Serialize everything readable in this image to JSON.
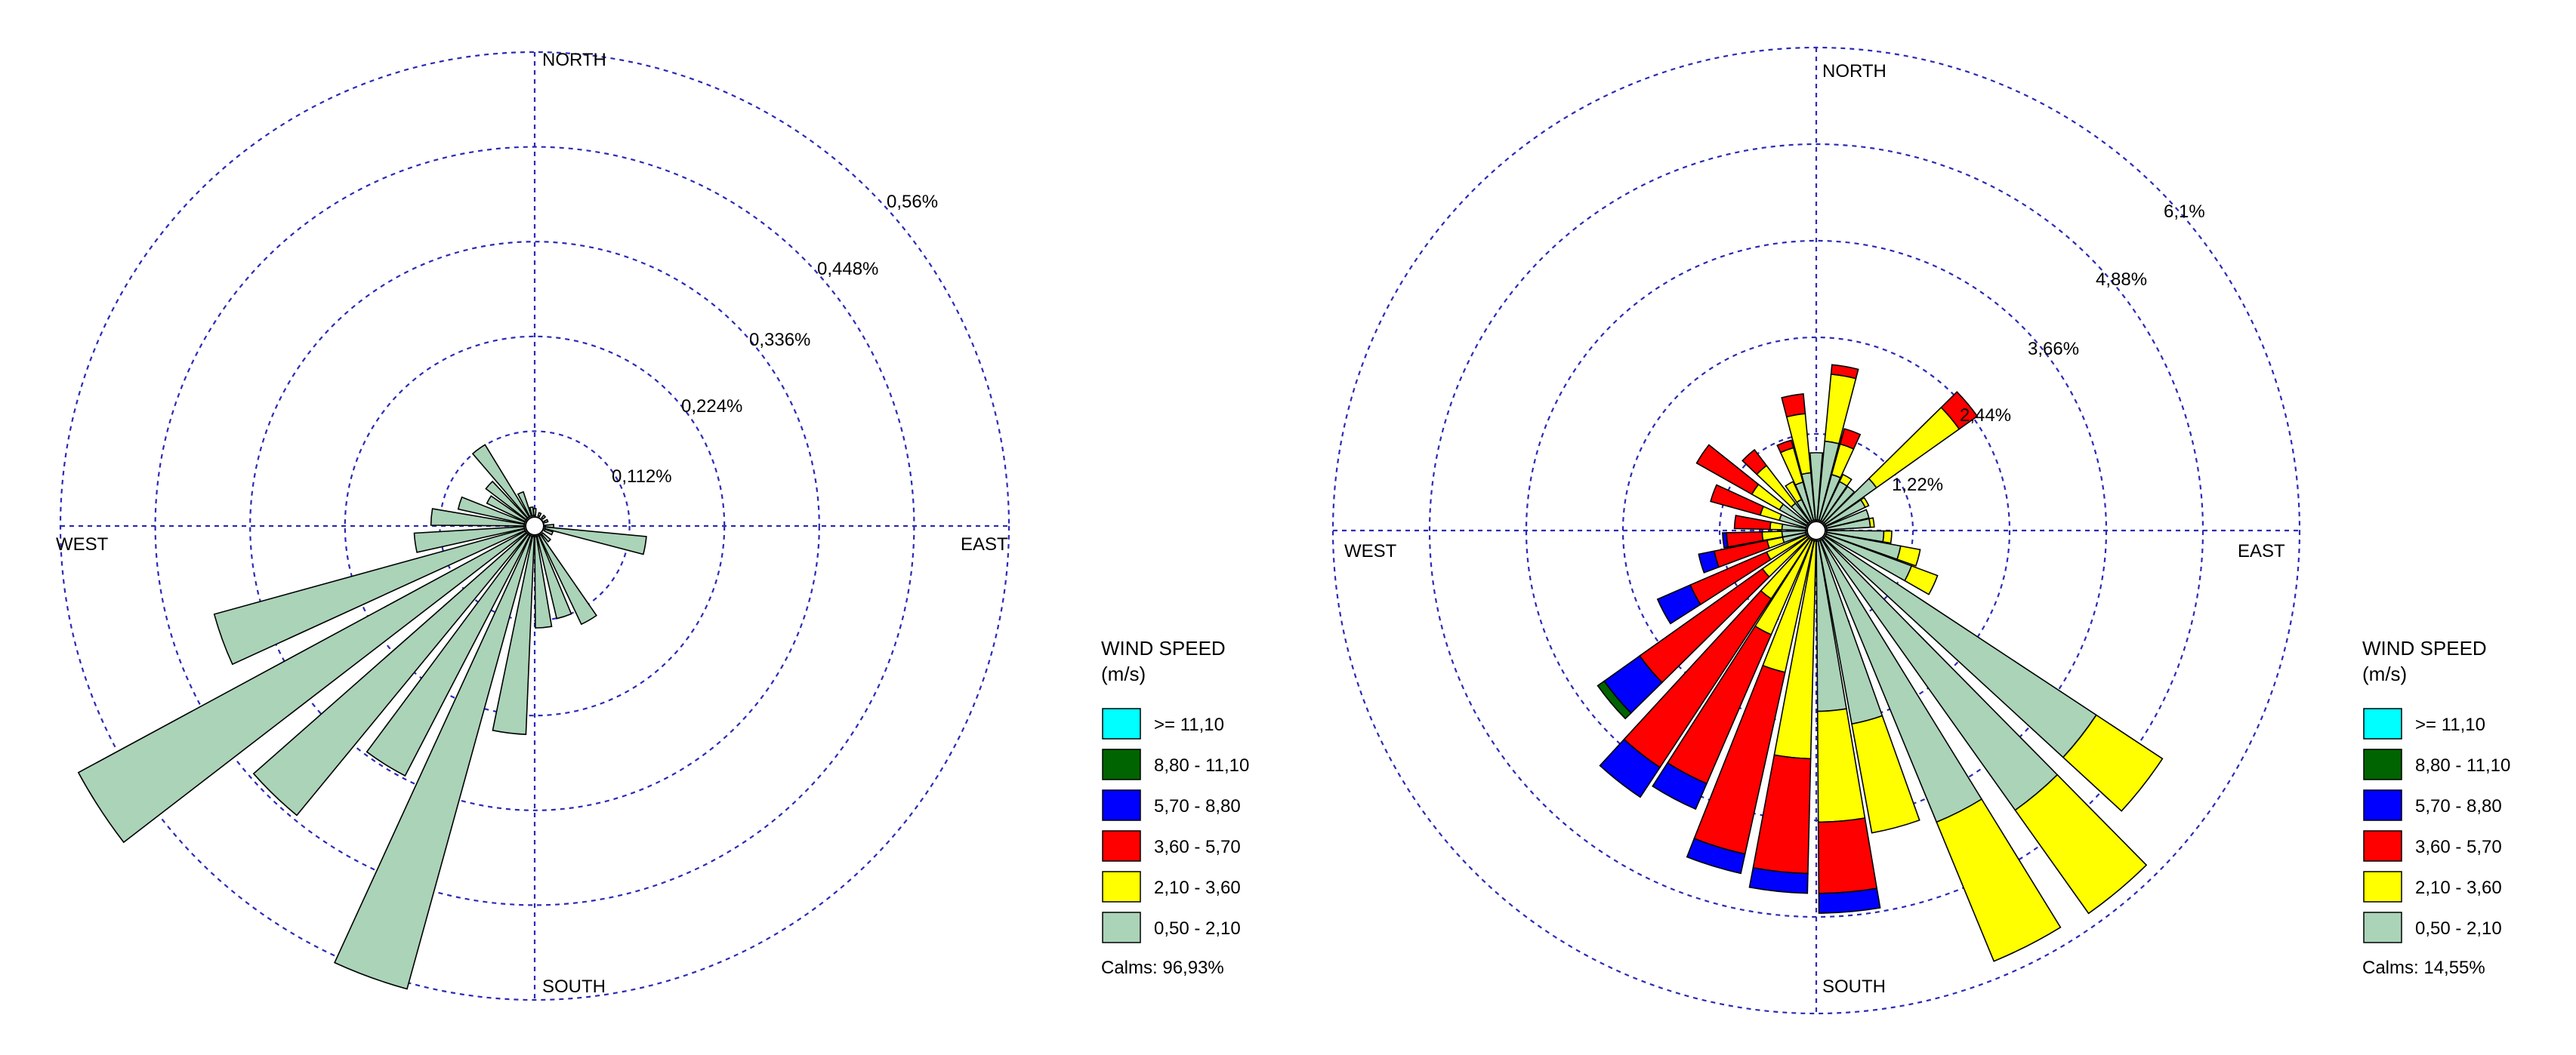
{
  "chart_data": [
    {
      "type": "windrose",
      "rings": [
        "0,112%",
        "0,224%",
        "0,336%",
        "0,448%",
        "0,56%"
      ],
      "ring_values": [
        0.112,
        0.224,
        0.336,
        0.448,
        0.56
      ],
      "directions": {
        "north": "NORTH",
        "south": "SOUTH",
        "east": "EAST",
        "west": "WEST"
      },
      "legend_title": [
        "WIND SPEED",
        "(m/s)"
      ],
      "calms": "Calms: 96,93%",
      "bins": [
        "0,50 - 2,10"
      ],
      "sectors": [
        {
          "dir": 0,
          "values": [
            0.008
          ]
        },
        {
          "dir": 22.5,
          "values": [
            0.004
          ]
        },
        {
          "dir": 45,
          "values": [
            0.004
          ]
        },
        {
          "dir": 67.5,
          "values": [
            0.004
          ]
        },
        {
          "dir": 90,
          "values": [
            0.01
          ]
        },
        {
          "dir": 100,
          "values": [
            0.12
          ]
        },
        {
          "dir": 112.5,
          "values": [
            0.01
          ]
        },
        {
          "dir": 135,
          "values": [
            0.012
          ]
        },
        {
          "dir": 150,
          "values": [
            0.116
          ]
        },
        {
          "dir": 162,
          "values": [
            0.1
          ]
        },
        {
          "dir": 175,
          "values": [
            0.108
          ]
        },
        {
          "dir": 187,
          "values": [
            0.234
          ]
        },
        {
          "dir": 200,
          "values": [
            0.555
          ]
        },
        {
          "dir": 212,
          "values": [
            0.32
          ]
        },
        {
          "dir": 224,
          "values": [
            0.43
          ]
        },
        {
          "dir": 237,
          "values": [
            0.6
          ]
        },
        {
          "dir": 250,
          "values": [
            0.38
          ]
        },
        {
          "dir": 262,
          "values": [
            0.13
          ]
        },
        {
          "dir": 275,
          "values": [
            0.11
          ]
        },
        {
          "dir": 287,
          "values": [
            0.08
          ]
        },
        {
          "dir": 300,
          "values": [
            0.05
          ]
        },
        {
          "dir": 312,
          "values": [
            0.06
          ]
        },
        {
          "dir": 324,
          "values": [
            0.1
          ]
        },
        {
          "dir": 337,
          "values": [
            0.03
          ]
        },
        {
          "dir": 350,
          "values": [
            0.01
          ]
        }
      ]
    },
    {
      "type": "windrose",
      "rings": [
        "1,22%",
        "2,44%",
        "3,66%",
        "4,88%",
        "6,1%"
      ],
      "ring_values": [
        1.22,
        2.44,
        3.66,
        4.88,
        6.1
      ],
      "directions": {
        "north": "NORTH",
        "south": "SOUTH",
        "east": "EAST",
        "west": "WEST"
      },
      "legend_title": [
        "WIND SPEED",
        "(m/s)"
      ],
      "calms": "Calms: 14,55%",
      "bins": [
        ">= 11,10",
        "8,80 - 11,10",
        "5,70 - 8,80",
        "3,60 - 5,70",
        "2,10 - 3,60",
        "0,50 - 2,10"
      ],
      "sectors": [
        {
          "dir": 0,
          "values": [
            0.85,
            0.0,
            0.0,
            0.0,
            0.0,
            0.0
          ]
        },
        {
          "dir": 10,
          "values": [
            1.0,
            0.85,
            0.12,
            0.0,
            0.0,
            0.0
          ]
        },
        {
          "dir": 20,
          "values": [
            0.6,
            0.4,
            0.2,
            0.0,
            0.0,
            0.0
          ]
        },
        {
          "dir": 30,
          "values": [
            0.55,
            0.1,
            0.0,
            0.0,
            0.0,
            0.0
          ]
        },
        {
          "dir": 40,
          "values": [
            0.55,
            0.0,
            0.0,
            0.0,
            0.0,
            0.0
          ]
        },
        {
          "dir": 50,
          "values": [
            0.8,
            1.28,
            0.28,
            0.0,
            0.0,
            0.0
          ]
        },
        {
          "dir": 60,
          "values": [
            0.55,
            0.05,
            0.0,
            0.0,
            0.0,
            0.0
          ]
        },
        {
          "dir": 72,
          "values": [
            0.55,
            0.0,
            0.0,
            0.0,
            0.0,
            0.0
          ]
        },
        {
          "dir": 82,
          "values": [
            0.55,
            0.05,
            0.0,
            0.0,
            0.0,
            0.0
          ]
        },
        {
          "dir": 95,
          "values": [
            0.72,
            0.1,
            0.0,
            0.0,
            0.0,
            0.0
          ]
        },
        {
          "dir": 105,
          "values": [
            0.95,
            0.25,
            0.0,
            0.0,
            0.0,
            0.0
          ]
        },
        {
          "dir": 115,
          "values": [
            1.15,
            0.35,
            0.0,
            0.0,
            0.0,
            0.0
          ]
        },
        {
          "dir": 128,
          "values": [
            4.1,
            1.0,
            0.0,
            0.0,
            0.0,
            0.0
          ]
        },
        {
          "dir": 140,
          "values": [
            4.2,
            1.6,
            0.0,
            0.0,
            0.0,
            0.0
          ]
        },
        {
          "dir": 153,
          "values": [
            3.85,
            1.9,
            0.0,
            0.0,
            0.0,
            0.0
          ]
        },
        {
          "dir": 165,
          "values": [
            2.35,
            1.4,
            0.0,
            0.0,
            0.0,
            0.0
          ]
        },
        {
          "dir": 175,
          "values": [
            2.15,
            1.4,
            0.9,
            0.25,
            0.0,
            0.0
          ]
        },
        {
          "dir": 186,
          "values": [
            0.0,
            2.75,
            1.45,
            0.25,
            0.0,
            0.0
          ]
        },
        {
          "dir": 197,
          "values": [
            0.0,
            1.7,
            2.35,
            0.25,
            0.0,
            0.0
          ]
        },
        {
          "dir": 208,
          "values": [
            0.0,
            1.3,
            2.05,
            0.35,
            0.0,
            0.0
          ]
        },
        {
          "dir": 218,
          "values": [
            0.0,
            0.9,
            2.55,
            0.45,
            0.0,
            0.0
          ]
        },
        {
          "dir": 230,
          "values": [
            0.0,
            0.7,
            1.9,
            0.55,
            0.1,
            0.0
          ]
        },
        {
          "dir": 242,
          "values": [
            0.0,
            0.55,
            1.05,
            0.45,
            0.0,
            0.0
          ]
        },
        {
          "dir": 254,
          "values": [
            0.3,
            0.2,
            0.68,
            0.2,
            0.0,
            0.0
          ]
        },
        {
          "dir": 264,
          "values": [
            0.3,
            0.25,
            0.45,
            0.05,
            0.0,
            0.0
          ]
        },
        {
          "dir": 276,
          "values": [
            0.3,
            0.15,
            0.45,
            0.0,
            0.0,
            0.0
          ]
        },
        {
          "dir": 290,
          "values": [
            0.35,
            0.25,
            0.65,
            0.0,
            0.0,
            0.0
          ]
        },
        {
          "dir": 304,
          "values": [
            0.4,
            0.4,
            0.8,
            0.0,
            0.0,
            0.0
          ]
        },
        {
          "dir": 318,
          "values": [
            0.3,
            0.6,
            0.25,
            0.0,
            0.0,
            0.0
          ]
        },
        {
          "dir": 330,
          "values": [
            0.3,
            0.25,
            0.0,
            0.0,
            0.0,
            0.0
          ]
        },
        {
          "dir": 340,
          "values": [
            0.5,
            0.45,
            0.1,
            0.0,
            0.0,
            0.0
          ]
        },
        {
          "dir": 350,
          "values": [
            0.6,
            0.75,
            0.25,
            0.0,
            0.0,
            0.0
          ]
        }
      ]
    }
  ],
  "legend_items": [
    {
      "label": ">= 11,10",
      "color": "#00ffff"
    },
    {
      "label": "8,80 - 11,10",
      "color": "#006400"
    },
    {
      "label": "5,70 - 8,80",
      "color": "#0000ff"
    },
    {
      "label": "3,60 - 5,70",
      "color": "#ff0000"
    },
    {
      "label": "2,10 - 3,60",
      "color": "#ffff00"
    },
    {
      "label": "0,50 - 2,10",
      "color": "#aad3b8"
    }
  ],
  "colors": {
    "grid": "#2b2bb5",
    "outline": "#000000",
    "bin_fill": [
      "#aad3b8",
      "#ffff00",
      "#ff0000",
      "#0000ff",
      "#006400",
      "#00ffff"
    ]
  }
}
